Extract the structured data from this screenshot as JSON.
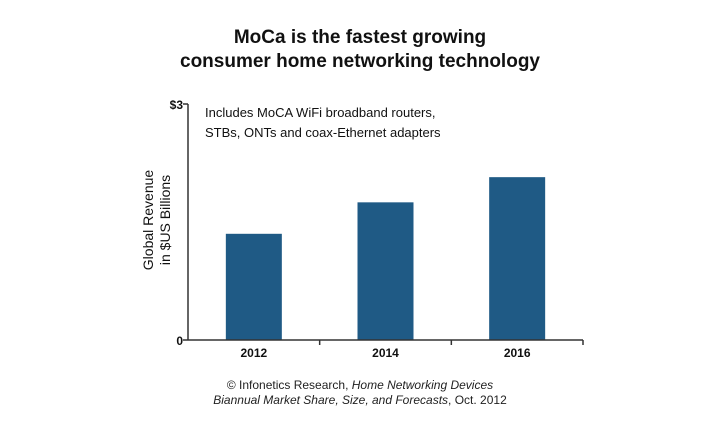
{
  "chart_data": {
    "type": "bar",
    "title_lines": [
      "MoCa is the fastest growing",
      "consumer home networking technology"
    ],
    "categories": [
      "2012",
      "2014",
      "2016"
    ],
    "values": [
      1.35,
      1.75,
      2.07
    ],
    "ylim": [
      0,
      3
    ],
    "y_tick_labels": [
      "0",
      "$3"
    ],
    "ylabel_lines": [
      "Global Revenue",
      "in $US Billions"
    ],
    "xlabel": "",
    "annotation_lines": [
      "Includes MoCA WiFi broadband routers,",
      "STBs, ONTs and coax-Ethernet adapters"
    ],
    "bar_color": "#1f5a85",
    "grid": false
  },
  "source": {
    "line1_prefix": "© Infonetics Research, ",
    "line1_italic": "Home Networking Devices",
    "line2_italic": "Biannual Market Share, Size, and Forecasts",
    "line2_suffix": ", Oct. 2012"
  }
}
